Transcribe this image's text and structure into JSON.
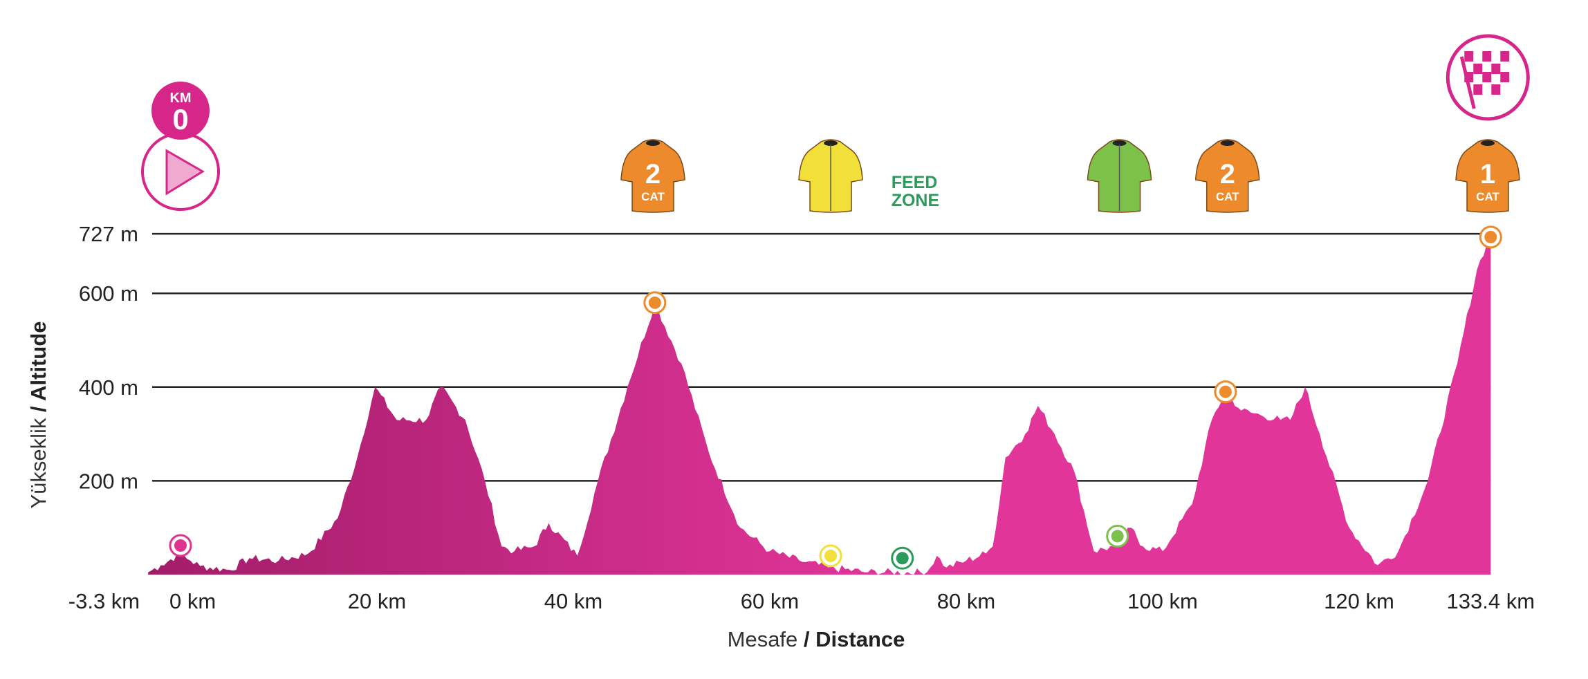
{
  "chart_data": {
    "type": "area",
    "title": "",
    "xlabel": {
      "light": "Mesafe",
      "bold": " / Distance"
    },
    "ylabel": {
      "light": "Yükseklik",
      "bold": " / Altitude"
    },
    "xlim": [
      -3.3,
      133.4
    ],
    "ylim": [
      0,
      727
    ],
    "grid": true,
    "x_ticks": [
      {
        "value": -3.3,
        "label": "-3.3 km"
      },
      {
        "value": 0,
        "label": "0 km"
      },
      {
        "value": 20,
        "label": "20 km"
      },
      {
        "value": 40,
        "label": "40 km"
      },
      {
        "value": 60,
        "label": "60 km"
      },
      {
        "value": 80,
        "label": "80 km"
      },
      {
        "value": 100,
        "label": "100 km"
      },
      {
        "value": 120,
        "label": "120 km"
      },
      {
        "value": 133.4,
        "label": "133.4 km"
      }
    ],
    "y_ticks": [
      {
        "value": 200,
        "label": "200 m"
      },
      {
        "value": 400,
        "label": "400 m"
      },
      {
        "value": 600,
        "label": "600 m"
      },
      {
        "value": 727,
        "label": "727 m"
      }
    ],
    "profile": {
      "km": [
        -3.3,
        -2,
        0,
        1,
        2,
        5,
        7,
        10,
        13,
        16,
        18,
        19.8,
        22,
        25,
        26.5,
        29,
        31,
        32.7,
        34,
        36,
        37.5,
        40.4,
        42.5,
        45.5,
        48.3,
        51,
        53.8,
        57,
        60,
        63,
        66,
        70,
        76,
        77,
        78,
        80,
        82,
        82.7,
        84,
        86,
        87.3,
        89,
        91,
        93,
        95,
        96.8,
        98,
        100,
        103,
        105,
        106.4,
        108,
        110,
        112,
        113,
        114.5,
        116,
        119,
        121.9,
        124,
        127,
        130,
        132,
        133.4
      ],
      "alt": [
        5,
        20,
        45,
        30,
        18,
        10,
        35,
        30,
        45,
        120,
        250,
        400,
        330,
        330,
        400,
        330,
        200,
        60,
        50,
        60,
        110,
        40,
        200,
        400,
        580,
        450,
        260,
        100,
        50,
        30,
        15,
        5,
        5,
        40,
        15,
        30,
        45,
        60,
        250,
        300,
        360,
        300,
        220,
        50,
        60,
        100,
        60,
        50,
        150,
        330,
        390,
        350,
        340,
        330,
        330,
        400,
        300,
        100,
        20,
        50,
        200,
        450,
        650,
        727
      ]
    },
    "markers": [
      {
        "km": 0,
        "alt": 62,
        "color": "#e0338f",
        "type": "start"
      },
      {
        "km": 48.3,
        "alt": 580,
        "color": "#ec8a2c",
        "type": "kom"
      },
      {
        "km": 66.2,
        "alt": 40,
        "color": "#f2e03a",
        "type": "sprint"
      },
      {
        "km": 73.5,
        "alt": 35,
        "color": "#2c9a5a",
        "type": "feed"
      },
      {
        "km": 95.4,
        "alt": 82,
        "color": "#7cc24a",
        "type": "sprint"
      },
      {
        "km": 106.4,
        "alt": 390,
        "color": "#ec8a2c",
        "type": "kom"
      },
      {
        "km": 133.4,
        "alt": 720,
        "color": "#ec8a2c",
        "type": "kom"
      }
    ],
    "icons": {
      "start": {
        "km": 0,
        "top": "KM",
        "num": "0"
      },
      "finish": {
        "km": 133.4
      },
      "jerseys": [
        {
          "km": 48.1,
          "color": "#ec8a2c",
          "num": "2",
          "cat": "CAT"
        },
        {
          "km": 66.2,
          "color": "#f2e03a",
          "num": "",
          "cat": ""
        },
        {
          "km": 95.6,
          "color": "#7cc24a",
          "num": "",
          "cat": ""
        },
        {
          "km": 106.6,
          "color": "#ec8a2c",
          "num": "2",
          "cat": "CAT"
        },
        {
          "km": 133.1,
          "color": "#ec8a2c",
          "num": "1",
          "cat": "CAT"
        }
      ],
      "feed_zone": {
        "km": 73.5,
        "line1": "FEED",
        "line2": "ZONE",
        "color": "#2c9a5a"
      }
    },
    "colors": {
      "fill_start": "#a21c69",
      "fill_end": "#e2359a",
      "accent": "#d6268a"
    }
  }
}
